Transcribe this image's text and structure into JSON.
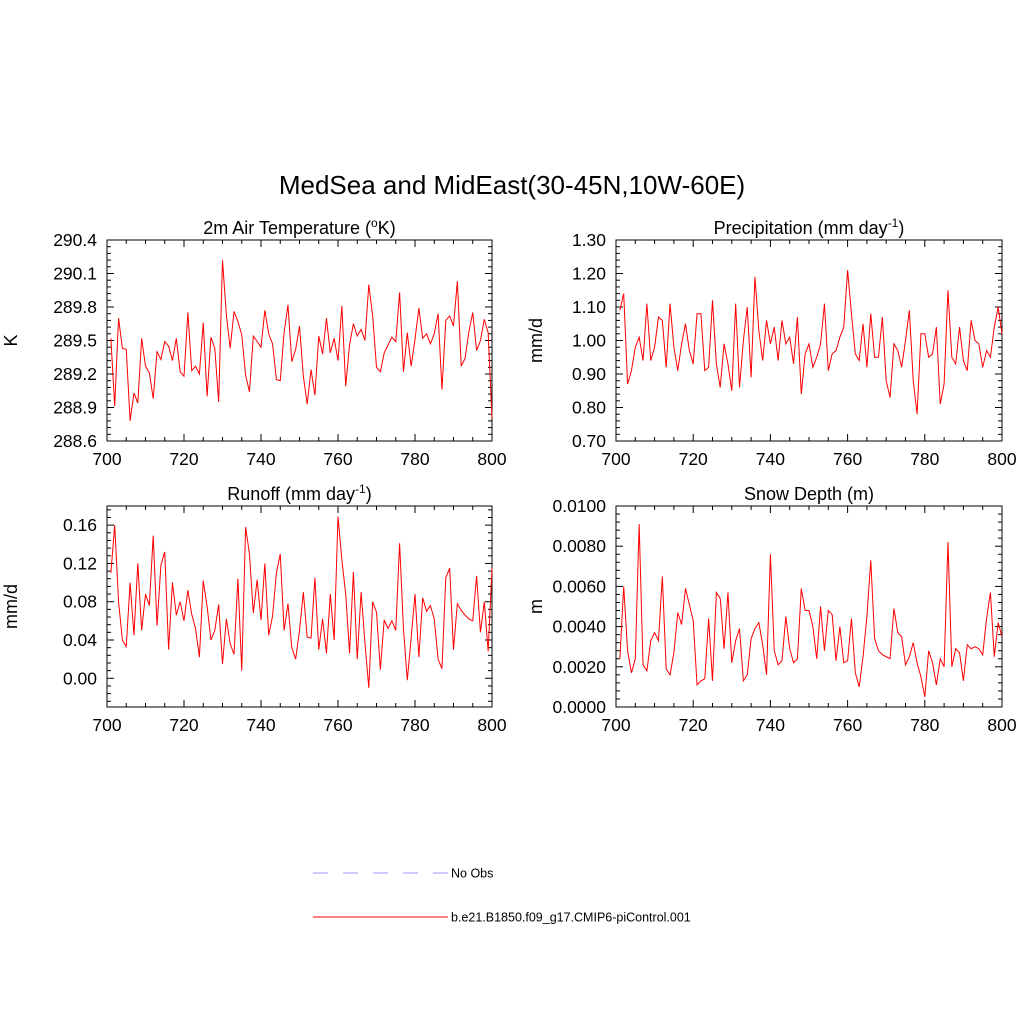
{
  "page": {
    "title": "MedSea and MidEast(30-45N,10W-60E)"
  },
  "legend": {
    "entries": [
      {
        "label": "No Obs",
        "color": "#9999ff",
        "style": "dashed"
      },
      {
        "label": "b.e21.B1850.f09_g17.CMIP6-piControl.001",
        "color": "#ff0000",
        "style": "solid"
      }
    ]
  },
  "chart_data": [
    {
      "type": "line",
      "title_main": "2m Air Temperature (",
      "title_sup1": "o",
      "title_post": "K)",
      "title_sup2": "",
      "title_end": "",
      "ylabel": "K",
      "xlim": [
        700,
        800
      ],
      "ylim": [
        288.6,
        290.4
      ],
      "xticks": [
        700,
        720,
        740,
        760,
        780,
        800
      ],
      "yticks": [
        288.6,
        288.9,
        289.2,
        289.5,
        289.8,
        290.1,
        290.4
      ],
      "ytick_labels": [
        "288.6",
        "288.9",
        "289.2",
        "289.5",
        "289.8",
        "290.1",
        "290.4"
      ],
      "series": [
        {
          "name": "b.e21.B1850.f09_g17.CMIP6-piControl.001",
          "x_start": 701,
          "values": [
            289.52,
            288.91,
            289.7,
            289.43,
            289.42,
            288.78,
            289.03,
            288.94,
            289.52,
            289.27,
            289.21,
            288.98,
            289.4,
            289.33,
            289.49,
            289.45,
            289.32,
            289.52,
            289.22,
            289.18,
            289.75,
            289.23,
            289.27,
            289.2,
            289.66,
            289.0,
            289.53,
            289.43,
            288.95,
            290.22,
            289.73,
            289.43,
            289.76,
            289.67,
            289.55,
            289.19,
            289.04,
            289.54,
            289.49,
            289.44,
            289.77,
            289.56,
            289.47,
            289.15,
            289.14,
            289.57,
            289.82,
            289.31,
            289.42,
            289.63,
            289.18,
            288.93,
            289.24,
            289.01,
            289.54,
            289.38,
            289.7,
            289.39,
            289.52,
            289.32,
            289.81,
            289.09,
            289.46,
            289.65,
            289.54,
            289.6,
            289.5,
            290.0,
            289.72,
            289.26,
            289.22,
            289.39,
            289.46,
            289.53,
            289.49,
            289.93,
            289.22,
            289.57,
            289.27,
            289.51,
            289.79,
            289.52,
            289.56,
            289.47,
            289.56,
            289.74,
            289.06,
            289.68,
            289.72,
            289.63,
            290.03,
            289.27,
            289.34,
            289.58,
            289.75,
            289.41,
            289.5,
            289.69,
            289.57,
            288.8
          ]
        }
      ]
    },
    {
      "type": "line",
      "title_main": "Precipitation (mm day",
      "title_sup1": "",
      "title_post": "",
      "title_sup2": "-1",
      "title_end": ")",
      "ylabel": "mm/d",
      "xlim": [
        700,
        800
      ],
      "ylim": [
        0.7,
        1.3
      ],
      "xticks": [
        700,
        720,
        740,
        760,
        780,
        800
      ],
      "yticks": [
        0.7,
        0.8,
        0.9,
        1.0,
        1.1,
        1.2,
        1.3
      ],
      "ytick_labels": [
        "0.70",
        "0.80",
        "0.90",
        "1.00",
        "1.10",
        "1.20",
        "1.30"
      ],
      "series": [
        {
          "name": "b.e21.B1850.f09_g17.CMIP6-piControl.001",
          "x_start": 701,
          "values": [
            1.09,
            1.14,
            0.87,
            0.91,
            0.98,
            1.01,
            0.94,
            1.11,
            0.94,
            0.98,
            1.07,
            1.06,
            0.92,
            1.11,
            0.98,
            0.91,
            0.99,
            1.05,
            0.97,
            0.93,
            1.08,
            1.08,
            0.91,
            0.92,
            1.12,
            0.93,
            0.86,
            0.99,
            0.93,
            0.85,
            1.11,
            0.86,
            1.0,
            1.1,
            0.89,
            1.19,
            1.03,
            0.94,
            1.06,
            0.99,
            1.04,
            0.94,
            1.06,
            0.99,
            1.01,
            0.93,
            1.07,
            0.84,
            0.96,
            0.99,
            0.92,
            0.95,
            0.99,
            1.11,
            0.91,
            0.96,
            0.97,
            1.01,
            1.04,
            1.21,
            1.08,
            0.96,
            0.94,
            1.05,
            0.92,
            1.08,
            0.95,
            0.95,
            1.07,
            0.88,
            0.83,
            0.99,
            0.97,
            0.92,
            1.0,
            1.09,
            0.88,
            0.78,
            1.02,
            1.02,
            0.95,
            0.96,
            1.04,
            0.81,
            0.87,
            1.15,
            0.95,
            0.93,
            1.04,
            0.94,
            0.91,
            1.06,
            1.0,
            0.99,
            0.92,
            0.97,
            0.95,
            1.04,
            1.1,
            1.02
          ]
        }
      ]
    },
    {
      "type": "line",
      "title_main": "Runoff (mm day",
      "title_sup1": "",
      "title_post": "",
      "title_sup2": "-1",
      "title_end": ")",
      "ylabel": "mm/d",
      "xlim": [
        700,
        800
      ],
      "ylim": [
        -0.03,
        0.18
      ],
      "xticks": [
        700,
        720,
        740,
        760,
        780,
        800
      ],
      "yticks": [
        0.0,
        0.04,
        0.08,
        0.12,
        0.16
      ],
      "ytick_labels": [
        "0.00",
        "0.04",
        "0.08",
        "0.12",
        "0.16"
      ],
      "series": [
        {
          "name": "b.e21.B1850.f09_g17.CMIP6-piControl.001",
          "x_start": 701,
          "values": [
            0.11,
            0.16,
            0.08,
            0.04,
            0.033,
            0.1,
            0.045,
            0.12,
            0.05,
            0.088,
            0.076,
            0.149,
            0.055,
            0.118,
            0.132,
            0.03,
            0.1,
            0.066,
            0.08,
            0.06,
            0.092,
            0.067,
            0.052,
            0.022,
            0.102,
            0.075,
            0.04,
            0.05,
            0.077,
            0.015,
            0.062,
            0.036,
            0.025,
            0.104,
            0.008,
            0.158,
            0.13,
            0.068,
            0.103,
            0.061,
            0.12,
            0.045,
            0.065,
            0.11,
            0.13,
            0.05,
            0.078,
            0.032,
            0.02,
            0.05,
            0.09,
            0.043,
            0.042,
            0.105,
            0.03,
            0.062,
            0.026,
            0.088,
            0.04,
            0.169,
            0.124,
            0.088,
            0.026,
            0.111,
            0.02,
            0.09,
            0.037,
            -0.01,
            0.08,
            0.069,
            0.009,
            0.061,
            0.052,
            0.06,
            0.05,
            0.141,
            0.052,
            -0.002,
            0.042,
            0.088,
            0.022,
            0.084,
            0.07,
            0.076,
            0.062,
            0.02,
            0.01,
            0.105,
            0.115,
            0.03,
            0.078,
            0.071,
            0.066,
            0.062,
            0.06,
            0.107,
            0.048,
            0.08,
            0.028,
            0.115
          ]
        }
      ]
    },
    {
      "type": "line",
      "title_main": "Snow Depth (m)",
      "title_sup1": "",
      "title_post": "",
      "title_sup2": "",
      "title_end": "",
      "ylabel": "m",
      "xlim": [
        700,
        800
      ],
      "ylim": [
        0.0,
        0.01
      ],
      "xticks": [
        700,
        720,
        740,
        760,
        780,
        800
      ],
      "yticks": [
        0.0,
        0.002,
        0.004,
        0.006,
        0.008,
        0.01
      ],
      "ytick_labels": [
        "0.0000",
        "0.0020",
        "0.0040",
        "0.0060",
        "0.0080",
        "0.0100"
      ],
      "series": [
        {
          "name": "b.e21.B1850.f09_g17.CMIP6-piControl.001",
          "x_start": 701,
          "values": [
            0.0024,
            0.006,
            0.0028,
            0.0017,
            0.0024,
            0.0091,
            0.0021,
            0.0018,
            0.0033,
            0.0037,
            0.0033,
            0.0065,
            0.0019,
            0.0016,
            0.0027,
            0.0047,
            0.0041,
            0.0059,
            0.0051,
            0.0043,
            0.0011,
            0.0013,
            0.0014,
            0.0044,
            0.0013,
            0.0057,
            0.0054,
            0.0029,
            0.0057,
            0.0022,
            0.0033,
            0.0039,
            0.0013,
            0.0016,
            0.0034,
            0.0039,
            0.0042,
            0.0031,
            0.0016,
            0.0076,
            0.0028,
            0.0021,
            0.0023,
            0.0045,
            0.0029,
            0.0022,
            0.0024,
            0.0059,
            0.0048,
            0.0048,
            0.004,
            0.0024,
            0.005,
            0.0028,
            0.0048,
            0.0046,
            0.0023,
            0.004,
            0.0022,
            0.0023,
            0.0044,
            0.0017,
            0.001,
            0.0025,
            0.0045,
            0.0073,
            0.0034,
            0.0028,
            0.0026,
            0.0025,
            0.0024,
            0.0049,
            0.0037,
            0.0035,
            0.0021,
            0.0025,
            0.0032,
            0.0022,
            0.0015,
            0.0005,
            0.0028,
            0.0022,
            0.0011,
            0.0024,
            0.002,
            0.0082,
            0.002,
            0.0029,
            0.0027,
            0.0013,
            0.0031,
            0.0029,
            0.003,
            0.0029,
            0.0026,
            0.0044,
            0.0057,
            0.0025,
            0.0042,
            0.0035
          ]
        }
      ]
    }
  ]
}
